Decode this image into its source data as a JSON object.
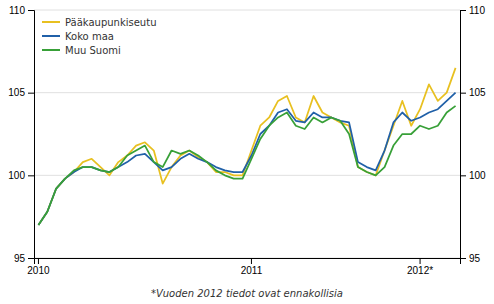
{
  "chart_data": {
    "type": "line",
    "footnote": "*Vuoden 2012 tiedot ovat ennakollisia",
    "categories": [
      "2010",
      null,
      null,
      null,
      null,
      null,
      null,
      null,
      null,
      null,
      null,
      null,
      null,
      null,
      null,
      null,
      null,
      null,
      null,
      null,
      null,
      null,
      null,
      null,
      "2011",
      null,
      null,
      null,
      null,
      null,
      null,
      null,
      null,
      null,
      null,
      null,
      null,
      null,
      null,
      null,
      null,
      null,
      null,
      "2012*",
      null,
      null,
      null,
      null
    ],
    "series": [
      {
        "name": "Pääkaupunkiseutu",
        "color": "#e8c020",
        "values": [
          97.0,
          97.8,
          99.2,
          99.8,
          100.2,
          100.8,
          101.0,
          100.5,
          100.0,
          100.8,
          101.2,
          101.8,
          102.0,
          101.5,
          99.5,
          100.5,
          101.2,
          101.5,
          101.1,
          100.8,
          100.2,
          100.2,
          100.0,
          100.0,
          101.5,
          103.0,
          103.5,
          104.5,
          104.8,
          103.5,
          103.2,
          104.8,
          103.8,
          103.5,
          103.2,
          103.0,
          100.5,
          100.2,
          100.0,
          101.5,
          103.0,
          104.5,
          103.0,
          104.0,
          105.5,
          104.5,
          105.0,
          106.5
        ]
      },
      {
        "name": "Koko maa",
        "color": "#2060a8",
        "values": [
          97.0,
          97.8,
          99.2,
          99.8,
          100.2,
          100.5,
          100.5,
          100.3,
          100.2,
          100.5,
          100.8,
          101.2,
          101.3,
          100.8,
          100.3,
          100.5,
          101.0,
          101.3,
          101.0,
          100.8,
          100.5,
          100.3,
          100.2,
          100.2,
          101.2,
          102.5,
          103.0,
          103.8,
          104.0,
          103.3,
          103.2,
          103.8,
          103.5,
          103.5,
          103.3,
          103.2,
          100.8,
          100.5,
          100.3,
          101.5,
          103.2,
          103.8,
          103.3,
          103.5,
          103.8,
          104.0,
          104.5,
          105.0
        ]
      },
      {
        "name": "Muu Suomi",
        "color": "#38a038",
        "values": [
          97.0,
          97.8,
          99.2,
          99.8,
          100.3,
          100.5,
          100.5,
          100.3,
          100.2,
          100.5,
          101.2,
          101.5,
          101.8,
          100.8,
          100.5,
          101.5,
          101.3,
          101.5,
          101.2,
          100.8,
          100.3,
          100.0,
          99.8,
          99.8,
          101.0,
          102.2,
          103.0,
          103.5,
          103.8,
          103.0,
          102.8,
          103.5,
          103.2,
          103.5,
          103.3,
          102.5,
          100.5,
          100.2,
          100.0,
          100.5,
          101.8,
          102.5,
          102.5,
          103.0,
          102.8,
          103.0,
          103.8,
          104.2
        ]
      }
    ],
    "ylim": [
      95,
      110
    ],
    "yticks": [
      95,
      100,
      105,
      110
    ],
    "y2lim": [
      95,
      110
    ],
    "y2ticks": [
      95,
      100,
      105,
      110
    ],
    "grid": true,
    "legend": "upper-left"
  }
}
